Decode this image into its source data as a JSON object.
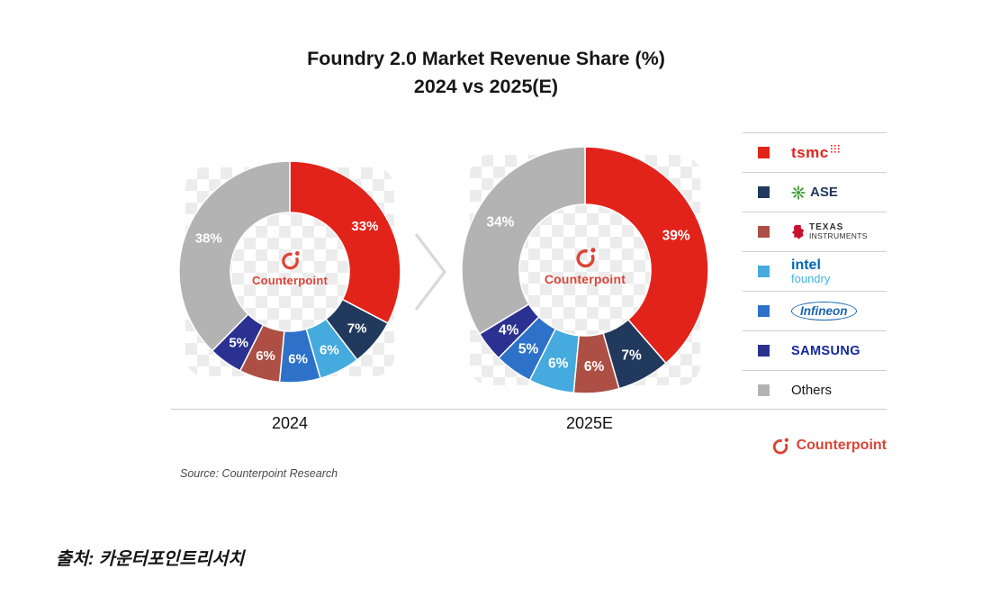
{
  "title": {
    "line1": "Foundry 2.0 Market Revenue Share (%)",
    "line2": "2024 vs 2025(E)"
  },
  "chart_data": [
    {
      "type": "pie",
      "label": "2024",
      "unit": "%",
      "slices": [
        {
          "label": "tsmc",
          "value": 33
        },
        {
          "label": "ASE",
          "value": 7
        },
        {
          "label": "intel foundry",
          "value": 6
        },
        {
          "label": "Infineon",
          "value": 6
        },
        {
          "label": "Texas Instruments",
          "value": 6
        },
        {
          "label": "SAMSUNG",
          "value": 5
        },
        {
          "label": "Others",
          "value": 38
        }
      ]
    },
    {
      "type": "pie",
      "label": "2025E",
      "unit": "%",
      "slices": [
        {
          "label": "tsmc",
          "value": 39
        },
        {
          "label": "ASE",
          "value": 7
        },
        {
          "label": "Texas Instruments",
          "value": 6
        },
        {
          "label": "intel foundry",
          "value": 6
        },
        {
          "label": "Infineon",
          "value": 5
        },
        {
          "label": "SAMSUNG",
          "value": 4
        },
        {
          "label": "Others",
          "value": 34
        }
      ]
    }
  ],
  "colors": {
    "tsmc": "#e2231a",
    "ASE": "#21395c",
    "Texas Instruments": "#ad4f44",
    "intel foundry": "#45aadd",
    "Infineon": "#2d72c8",
    "SAMSUNG": "#2b3191",
    "Others": "#b3b3b3",
    "counterpoint_red": "#dc4437",
    "ase_logo_green": "#3f9c35",
    "ti_logo_red": "#c8102e",
    "ti_text": "#2e2e2e",
    "intel_blue": "#0068b5",
    "intel_foundry_blue": "#41b6e6",
    "infineon_blue": "#1b66b0",
    "samsung_blue": "#1428a0"
  },
  "legend": {
    "items": [
      {
        "name": "tsmc"
      },
      {
        "name": "ASE"
      },
      {
        "name": "Texas Instruments",
        "lines": [
          "TEXAS",
          "INSTRUMENTS"
        ]
      },
      {
        "name": "intel foundry",
        "lines": [
          "intel",
          "foundry"
        ]
      },
      {
        "name": "Infineon"
      },
      {
        "name": "SAMSUNG"
      },
      {
        "name": "Others"
      }
    ]
  },
  "source_note": "Source: Counterpoint Research",
  "footer_caption": "출처: 카운터포인트리서치",
  "brand": {
    "name": "Counterpoint"
  }
}
